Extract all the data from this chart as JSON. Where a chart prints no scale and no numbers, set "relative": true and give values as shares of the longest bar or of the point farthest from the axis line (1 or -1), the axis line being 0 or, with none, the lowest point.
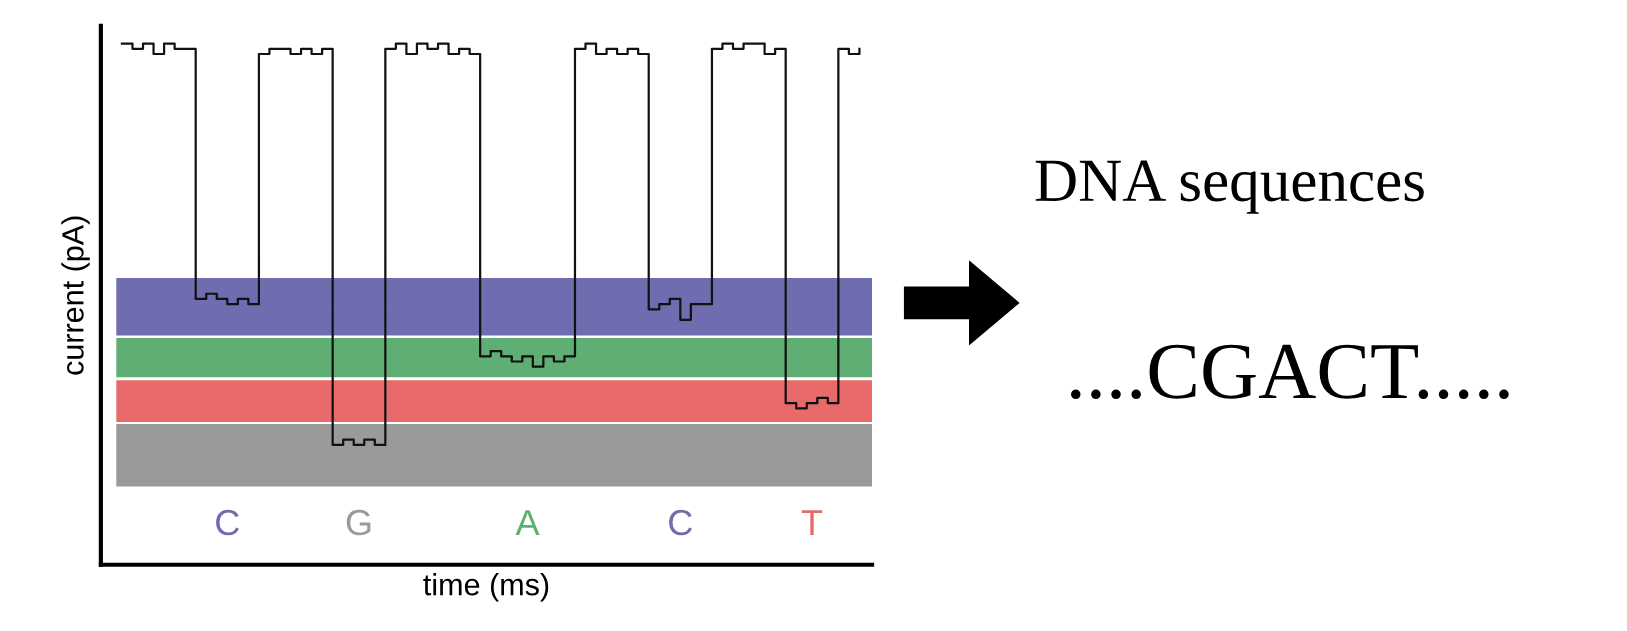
{
  "chart_data": {
    "type": "step",
    "relative": true,
    "xlabel": "time (ms)",
    "ylabel": "current (pA)",
    "color": "#111111",
    "categories": [
      null,
      null,
      null,
      null,
      null,
      null,
      null,
      null,
      null,
      null,
      null,
      null,
      null,
      null,
      null,
      null,
      null,
      null,
      null,
      null,
      null,
      null,
      null,
      null,
      null,
      null,
      null,
      null,
      null,
      null,
      null,
      null,
      null,
      null,
      null,
      null,
      null,
      null,
      null,
      null,
      null,
      null,
      null,
      null,
      null,
      null,
      null,
      null,
      null,
      null,
      null,
      null,
      null,
      null,
      null,
      null,
      null,
      null,
      null,
      null,
      null,
      null,
      null,
      null,
      null,
      null,
      null,
      null,
      null,
      null,
      null
    ],
    "values": [
      1.0,
      0.99,
      1.0,
      0.98,
      1.0,
      0.99,
      0.99,
      0.51,
      0.52,
      0.51,
      0.5,
      0.51,
      0.5,
      0.98,
      0.99,
      0.99,
      0.98,
      0.99,
      0.98,
      0.99,
      0.23,
      0.24,
      0.23,
      0.24,
      0.23,
      0.99,
      1.0,
      0.98,
      1.0,
      0.99,
      1.0,
      0.98,
      0.99,
      0.98,
      0.4,
      0.41,
      0.4,
      0.39,
      0.4,
      0.38,
      0.4,
      0.39,
      0.4,
      0.99,
      1.0,
      0.98,
      0.99,
      0.98,
      0.99,
      0.98,
      0.49,
      0.5,
      0.51,
      0.47,
      0.5,
      0.5,
      0.99,
      1.0,
      0.99,
      1.0,
      1.0,
      0.98,
      0.99,
      0.31,
      0.3,
      0.31,
      0.32,
      0.31,
      0.99,
      0.98,
      0.99
    ],
    "bands": [
      {
        "axis": "y",
        "from": 0.44,
        "to": 0.55,
        "label": "C",
        "color": "#6f6db0"
      },
      {
        "axis": "y",
        "from": 0.36,
        "to": 0.435,
        "label": "A",
        "color": "#5fae74"
      },
      {
        "axis": "y",
        "from": 0.274,
        "to": 0.354,
        "label": "T",
        "color": "#e96a6a"
      },
      {
        "axis": "y",
        "from": 0.15,
        "to": 0.27,
        "label": "G",
        "color": "#9a9a9a"
      }
    ],
    "annotations": [
      "DNA sequences",
      "....CGACT....."
    ]
  }
}
